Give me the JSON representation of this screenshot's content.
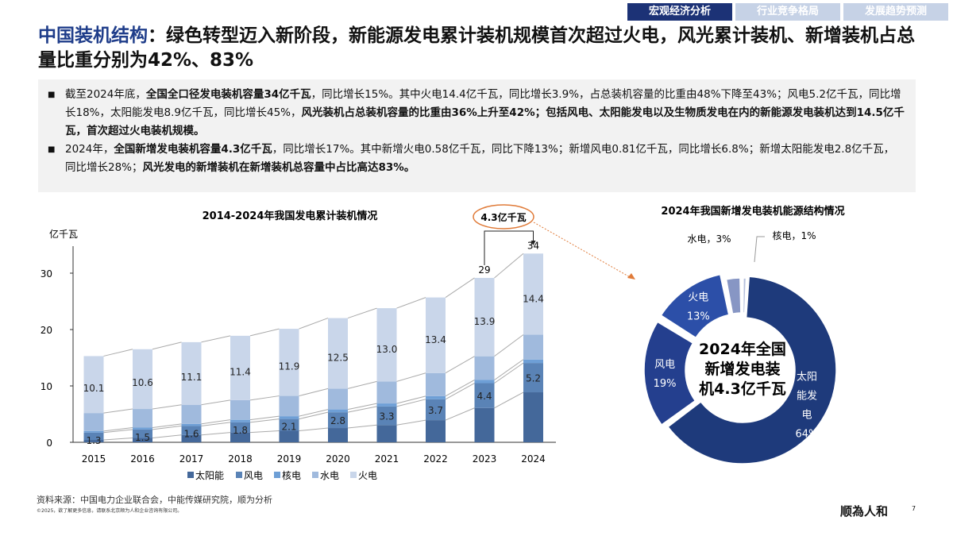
{
  "tabs": [
    "宏观经济分析",
    "行业竞争格局",
    "发展趋势预测"
  ],
  "title": {
    "highlight": "中国装机结构",
    "rest": "：绿色转型迈入新阶段，新能源发电累计装机规模首次超过火电，风光累计装机、新增装机占总量比重分别为42%、83%"
  },
  "bullets": [
    [
      {
        "t": "截至2024年底，"
      },
      {
        "t": "全国全口径发电装机容量34亿千瓦",
        "b": true
      },
      {
        "t": "，同比增长15%。其中火电14.4亿千瓦，同比增长3.9%，占总装机容量的比重由48%下降至43%；风电5.2亿千瓦，同比增长18%，太阳能发电8.9亿千瓦，同比增长45%，"
      },
      {
        "t": "风光装机占总装机容量的比重由36%上升至42%；包括风电、太阳能发电以及生物质发电在内的新能源发电装机达到14.5亿千瓦，首次超过火电装机规模。",
        "b": true
      }
    ],
    [
      {
        "t": "2024年，"
      },
      {
        "t": "全国新增发电装机容量4.3亿千瓦",
        "b": true
      },
      {
        "t": "，同比增长17%。其中新增火电0.58亿千瓦，同比下降13%；新增风电0.81亿千瓦，同比增长6.8%；新增太阳能发电2.8亿千瓦，同比增长28%；"
      },
      {
        "t": "风光发电的新增装机在新增装机总容量中占比高达83%。",
        "b": true
      }
    ]
  ],
  "chart_data": [
    {
      "type": "bar",
      "stacked": true,
      "title": "2014-2024年我国发电累计装机情况",
      "ylabel": "亿千瓦",
      "ylim": [
        0,
        35
      ],
      "yticks": [
        0,
        10,
        20,
        30
      ],
      "categories": [
        "2015",
        "2016",
        "2017",
        "2018",
        "2019",
        "2020",
        "2021",
        "2022",
        "2023",
        "2024"
      ],
      "series": [
        {
          "name": "太阳能",
          "color": "#44689a",
          "values": [
            0.42,
            0.77,
            1.3,
            1.74,
            2.04,
            2.53,
            3.06,
            3.93,
            6.09,
            8.87
          ]
        },
        {
          "name": "风电",
          "color": "#5a83b6",
          "values": [
            1.3,
            1.5,
            1.6,
            1.8,
            2.1,
            2.8,
            3.3,
            3.7,
            4.4,
            5.2
          ],
          "labels": true
        },
        {
          "name": "核电",
          "color": "#6e9fd6",
          "values": [
            0.27,
            0.34,
            0.36,
            0.45,
            0.49,
            0.5,
            0.53,
            0.56,
            0.57,
            0.61
          ]
        },
        {
          "name": "水电",
          "color": "#a0badd",
          "values": [
            3.2,
            3.3,
            3.4,
            3.5,
            3.6,
            3.7,
            3.9,
            4.1,
            4.2,
            4.4
          ]
        },
        {
          "name": "火电",
          "color": "#c9d6ea",
          "values": [
            10.1,
            10.6,
            11.1,
            11.4,
            11.9,
            12.5,
            13.0,
            13.4,
            13.9,
            14.4
          ],
          "labels": true
        }
      ],
      "total_labels": {
        "2023": "29",
        "2024": "34"
      },
      "annotation": "4.3亿千瓦"
    },
    {
      "type": "pie",
      "donut": true,
      "title": "2024年我国新增发电装机能源结构情况",
      "center_text": [
        "2024年全国",
        "新增发电装",
        "机4.3亿千瓦"
      ],
      "slices": [
        {
          "name": "太阳能发电",
          "label": [
            "太阳",
            "能发",
            "电",
            "64%"
          ],
          "value": 64,
          "color": "#1e3a7b"
        },
        {
          "name": "风电",
          "label": [
            "风电",
            "19%"
          ],
          "value": 19,
          "color": "#243f8e"
        },
        {
          "name": "火电",
          "label": [
            "火电",
            "13%"
          ],
          "value": 13,
          "color": "#2c4fa8"
        },
        {
          "name": "水电",
          "label": [
            "水电，3%"
          ],
          "value": 3,
          "color": "#8796c4"
        },
        {
          "name": "核电",
          "label": [
            "核电，1%"
          ],
          "value": 1,
          "color": "#b4bfdc"
        }
      ]
    }
  ],
  "footer": {
    "source": "资料来源：中国电力企业联合会，中能传媒研究院，顺为分析",
    "copyright": "©2025，欲了解更多信息，请联系北京顺为人和企业咨询有限公司。",
    "logo": "顺为人和",
    "page": "7"
  }
}
